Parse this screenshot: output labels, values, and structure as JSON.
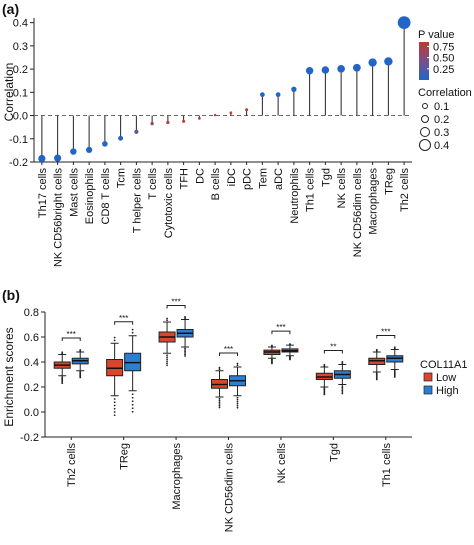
{
  "chart_data": [
    {
      "panel_label": "(a)",
      "type": "lollipop",
      "ylabel": "Correlation",
      "ylim": [
        -0.2,
        0.42
      ],
      "yticks": [
        -0.2,
        -0.1,
        0.0,
        0.1,
        0.2,
        0.3,
        0.4
      ],
      "ytick_labels": [
        "-0.2",
        "-0.1",
        "0.0",
        "0.1",
        "0.2",
        "0.3",
        "0.4"
      ],
      "categories": [
        "Th17 cells",
        "NK CD56bright cells",
        "Mast cells",
        "Eosinophils",
        "CD8 T cells",
        "Tcm",
        "T helper cells",
        "T cells",
        "Cytotoxic cells",
        "TFH",
        "DC",
        "B cells",
        "iDC",
        "pDC",
        "Tem",
        "aDC",
        "Neutrophils",
        "Th1 cells",
        "Tgd",
        "NK cells",
        "NK CD56dim cells",
        "Macrophages",
        "TReg",
        "Th2 cells"
      ],
      "values": [
        -0.185,
        -0.183,
        -0.155,
        -0.148,
        -0.122,
        -0.098,
        -0.07,
        -0.035,
        -0.03,
        -0.025,
        -0.012,
        0.002,
        0.012,
        0.025,
        0.09,
        0.09,
        0.113,
        0.193,
        0.196,
        0.201,
        0.206,
        0.228,
        0.233,
        0.4
      ],
      "pvalues": [
        0.001,
        0.001,
        0.001,
        0.001,
        0.001,
        0.01,
        0.3,
        0.7,
        0.75,
        0.78,
        0.82,
        0.9,
        0.85,
        0.8,
        0.001,
        0.001,
        0.001,
        0.001,
        0.001,
        0.001,
        0.001,
        0.001,
        0.001,
        0.001
      ],
      "legend_pvalue": {
        "title": "P value",
        "ticks": [
          "0.75",
          "0.50",
          "0.25"
        ],
        "ticks_num": [
          0.75,
          0.5,
          0.25
        ],
        "range": [
          0,
          0.85
        ],
        "color_high": "#c0392b",
        "color_low": "#2166c6"
      },
      "legend_size": {
        "title": "Correlation",
        "labels": [
          "0.1",
          "0.2",
          "0.3",
          "0.4"
        ],
        "values": [
          0.1,
          0.2,
          0.3,
          0.4
        ]
      }
    },
    {
      "panel_label": "(b)",
      "type": "boxplot",
      "ylabel": "Enrichment scores",
      "ylim": [
        -0.2,
        0.8
      ],
      "yticks": [
        -0.2,
        0.0,
        0.2,
        0.4,
        0.6,
        0.8
      ],
      "ytick_labels": [
        "-0.2",
        "0.0",
        "0.2",
        "0.4",
        "0.6",
        "0.8"
      ],
      "categories": [
        "Th2 cells",
        "TReg",
        "Macrophages",
        "NK CD56dim cells",
        "NK cells",
        "Tgd",
        "Th1 cells"
      ],
      "significance": [
        "***",
        "***",
        "***",
        "***",
        "***",
        "**",
        "***"
      ],
      "legend": {
        "title": "COL11A1"
      },
      "series": [
        {
          "name": "Low",
          "color": "#d9462e",
          "boxes": [
            {
              "q1": 0.35,
              "median": 0.375,
              "q3": 0.4,
              "wlo": 0.29,
              "whi": 0.46
            },
            {
              "q1": 0.29,
              "median": 0.35,
              "q3": 0.42,
              "wlo": 0.13,
              "whi": 0.55
            },
            {
              "q1": 0.56,
              "median": 0.6,
              "q3": 0.64,
              "wlo": 0.47,
              "whi": 0.72
            },
            {
              "q1": 0.19,
              "median": 0.22,
              "q3": 0.26,
              "wlo": 0.12,
              "whi": 0.33
            },
            {
              "q1": 0.46,
              "median": 0.48,
              "q3": 0.495,
              "wlo": 0.43,
              "whi": 0.52
            },
            {
              "q1": 0.26,
              "median": 0.28,
              "q3": 0.31,
              "wlo": 0.2,
              "whi": 0.36
            },
            {
              "q1": 0.38,
              "median": 0.41,
              "q3": 0.43,
              "wlo": 0.32,
              "whi": 0.48
            }
          ]
        },
        {
          "name": "High",
          "color": "#2a7fd4",
          "boxes": [
            {
              "q1": 0.385,
              "median": 0.41,
              "q3": 0.43,
              "wlo": 0.33,
              "whi": 0.48
            },
            {
              "q1": 0.33,
              "median": 0.395,
              "q3": 0.47,
              "wlo": 0.17,
              "whi": 0.61
            },
            {
              "q1": 0.6,
              "median": 0.63,
              "q3": 0.66,
              "wlo": 0.52,
              "whi": 0.74
            },
            {
              "q1": 0.21,
              "median": 0.25,
              "q3": 0.29,
              "wlo": 0.13,
              "whi": 0.36
            },
            {
              "q1": 0.48,
              "median": 0.49,
              "q3": 0.505,
              "wlo": 0.45,
              "whi": 0.535
            },
            {
              "q1": 0.27,
              "median": 0.3,
              "q3": 0.33,
              "wlo": 0.22,
              "whi": 0.38
            },
            {
              "q1": 0.4,
              "median": 0.43,
              "q3": 0.45,
              "wlo": 0.34,
              "whi": 0.5
            }
          ]
        }
      ]
    }
  ]
}
